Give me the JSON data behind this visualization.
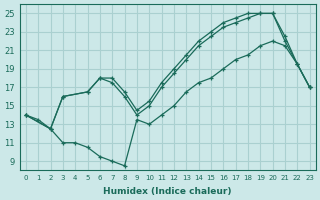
{
  "xlabel": "Humidex (Indice chaleur)",
  "xlim": [
    -0.5,
    23.5
  ],
  "ylim": [
    8,
    26
  ],
  "yticks": [
    9,
    11,
    13,
    15,
    17,
    19,
    21,
    23,
    25
  ],
  "xticks": [
    0,
    1,
    2,
    3,
    4,
    5,
    6,
    7,
    8,
    9,
    10,
    11,
    12,
    13,
    14,
    15,
    16,
    17,
    18,
    19,
    20,
    21,
    22,
    23
  ],
  "bg_color": "#cce8e8",
  "grid_color": "#aad0d0",
  "line_color": "#1a6b5a",
  "line1_x": [
    0,
    1,
    2,
    3,
    4,
    5,
    6,
    7,
    8,
    9,
    10,
    11,
    12,
    13,
    14,
    15,
    16,
    17,
    18,
    19,
    20,
    21,
    22,
    23
  ],
  "line1_y": [
    14,
    13.5,
    12.5,
    11,
    11,
    10.5,
    9.5,
    9,
    8.5,
    13.5,
    13,
    14,
    15,
    16.5,
    17.5,
    18,
    19,
    20,
    20.5,
    21.5,
    22,
    21.5,
    19.5,
    17
  ],
  "line2_x": [
    0,
    2,
    3,
    5,
    6,
    7,
    8,
    9,
    10,
    11,
    12,
    13,
    14,
    15,
    16,
    17,
    18,
    19,
    20,
    21,
    22,
    23
  ],
  "line2_y": [
    14,
    12.5,
    16,
    16.5,
    18,
    17.5,
    16,
    14,
    15,
    17,
    18.5,
    20,
    21.5,
    22.5,
    23.5,
    24,
    24.5,
    25,
    25,
    22,
    19.5,
    17
  ],
  "line3_x": [
    0,
    2,
    3,
    5,
    6,
    7,
    8,
    9,
    10,
    11,
    12,
    13,
    14,
    15,
    16,
    17,
    18,
    19,
    20,
    21,
    22,
    23
  ],
  "line3_y": [
    14,
    12.5,
    16,
    16.5,
    18,
    18,
    16.5,
    14.5,
    15.5,
    17.5,
    19,
    20.5,
    22,
    23,
    24,
    24.5,
    25,
    25,
    25,
    22.5,
    19.5,
    17
  ]
}
